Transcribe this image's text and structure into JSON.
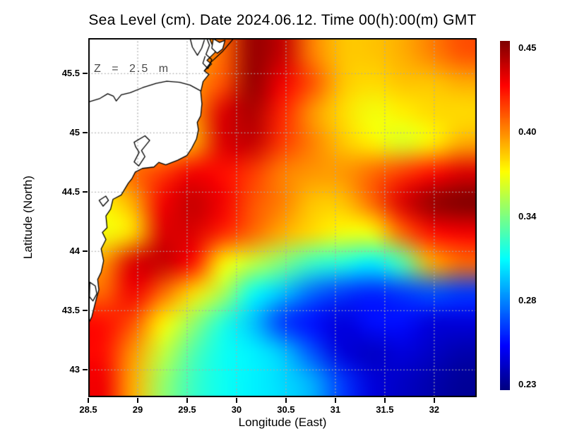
{
  "title": "Sea Level (cm). Date 2024.06.12. Time 00(h):00(m) GMT",
  "annotation": "Z = 2.5 m",
  "colors": {
    "background": "#ffffff",
    "land": "#ffffff",
    "coastline": "#000000",
    "gridline": "#aaaaaa",
    "axis": "#000000",
    "annotation_text": "#4a4a4a",
    "colorbar_top": "#7f0000",
    "colorbar_bottom": "#00007f"
  },
  "chart_data": {
    "type": "heatmap",
    "title": "Sea Level (cm). Date 2024.06.12. Time 00(h):00(m) GMT",
    "xlabel": "Longitude (East)",
    "ylabel": "Latitude (North)",
    "x_range": [
      28.5,
      32.43
    ],
    "y_range": [
      42.77,
      45.8
    ],
    "x_ticks": {
      "values": [
        28.5,
        29,
        29.5,
        30,
        30.5,
        31,
        31.5,
        32
      ],
      "labels": [
        "28.5",
        "29",
        "29.5",
        "30",
        "30.5",
        "31",
        "31.5",
        "32"
      ]
    },
    "y_ticks": {
      "values": [
        43,
        43.5,
        44,
        44.5,
        45,
        45.5
      ],
      "labels": [
        "43",
        "43.5",
        "44",
        "44.5",
        "45",
        "45.5"
      ]
    },
    "grid_on": true,
    "colormap": "jet",
    "colorbar": {
      "min": 0.23,
      "max": 0.45,
      "position": "right",
      "tick_labels": [
        "0.45",
        "0.40",
        "0.34",
        "0.28",
        "0.23"
      ]
    },
    "values_grid": {
      "rows": 12,
      "cols": 13,
      "values": [
        [
          0.39,
          0.39,
          0.39,
          0.385,
          0.4,
          0.445,
          0.435,
          0.395,
          0.38,
          0.38,
          0.385,
          0.395,
          0.405
        ],
        [
          0.38,
          0.38,
          0.38,
          0.39,
          0.405,
          0.445,
          0.425,
          0.405,
          0.38,
          0.375,
          0.38,
          0.38,
          0.385
        ],
        [
          0.38,
          0.38,
          0.38,
          0.39,
          0.43,
          0.44,
          0.415,
          0.39,
          0.375,
          0.365,
          0.37,
          0.375,
          0.375
        ],
        [
          0.38,
          0.38,
          0.38,
          0.385,
          0.43,
          0.435,
          0.41,
          0.395,
          0.38,
          0.37,
          0.36,
          0.37,
          0.385
        ],
        [
          0.39,
          0.4,
          0.41,
          0.425,
          0.42,
          0.41,
          0.395,
          0.39,
          0.39,
          0.4,
          0.41,
          0.42,
          0.43
        ],
        [
          0.37,
          0.385,
          0.425,
          0.435,
          0.425,
          0.405,
          0.395,
          0.38,
          0.38,
          0.4,
          0.43,
          0.445,
          0.45
        ],
        [
          0.365,
          0.375,
          0.43,
          0.43,
          0.415,
          0.4,
          0.385,
          0.375,
          0.365,
          0.365,
          0.4,
          0.42,
          0.425
        ],
        [
          0.39,
          0.43,
          0.435,
          0.42,
          0.37,
          0.355,
          0.34,
          0.325,
          0.32,
          0.31,
          0.33,
          0.385,
          0.4
        ],
        [
          0.4,
          0.425,
          0.4,
          0.375,
          0.35,
          0.315,
          0.3,
          0.28,
          0.27,
          0.265,
          0.27,
          0.275,
          0.27
        ],
        [
          0.42,
          0.405,
          0.37,
          0.345,
          0.32,
          0.3,
          0.27,
          0.26,
          0.25,
          0.26,
          0.26,
          0.25,
          0.25
        ],
        [
          0.42,
          0.39,
          0.355,
          0.33,
          0.315,
          0.31,
          0.3,
          0.275,
          0.25,
          0.245,
          0.25,
          0.245,
          0.24
        ],
        [
          0.425,
          0.385,
          0.345,
          0.325,
          0.315,
          0.31,
          0.305,
          0.295,
          0.27,
          0.25,
          0.245,
          0.24,
          0.235
        ]
      ]
    },
    "coastline": {
      "land_boundary": [
        [
          0.3115,
          0
        ],
        [
          0.327,
          0.039
        ],
        [
          0.3055,
          0.062
        ],
        [
          0.3175,
          0.072
        ],
        [
          0.2985,
          0.0915
        ],
        [
          0.3105,
          0.101
        ],
        [
          0.2955,
          0.121
        ],
        [
          0.2895,
          0.15
        ],
        [
          0.2925,
          0.183
        ],
        [
          0.2895,
          0.216
        ],
        [
          0.2805,
          0.235
        ],
        [
          0.2835,
          0.255
        ],
        [
          0.2785,
          0.281
        ],
        [
          0.266,
          0.307
        ],
        [
          0.254,
          0.327
        ],
        [
          0.23,
          0.34
        ],
        [
          0.1995,
          0.353
        ],
        [
          0.1815,
          0.346
        ],
        [
          0.169,
          0.359
        ],
        [
          0.139,
          0.363
        ],
        [
          0.121,
          0.373
        ],
        [
          0.112,
          0.392
        ],
        [
          0.103,
          0.404
        ],
        [
          0.0848,
          0.437
        ],
        [
          0.0635,
          0.449
        ],
        [
          0.0575,
          0.476
        ],
        [
          0.0454,
          0.4955
        ],
        [
          0.0484,
          0.528
        ],
        [
          0.0363,
          0.541
        ],
        [
          0.0454,
          0.561
        ],
        [
          0.0332,
          0.587
        ],
        [
          0.0394,
          0.62
        ],
        [
          0.0332,
          0.652
        ],
        [
          0.0242,
          0.672
        ],
        [
          0.0272,
          0.701
        ],
        [
          0.0212,
          0.724
        ],
        [
          0.0151,
          0.75
        ],
        [
          0.0091,
          0.776
        ],
        [
          0.0,
          0.796
        ]
      ],
      "inland_contours": [
        {
          "closed": false,
          "fill": false,
          "points": [
            [
              0,
              0.178
            ],
            [
              0.03,
              0.168
            ],
            [
              0.05,
              0.155
            ],
            [
              0.065,
              0.162
            ],
            [
              0.072,
              0.175
            ],
            [
              0.085,
              0.158
            ],
            [
              0.108,
              0.152
            ],
            [
              0.14,
              0.138
            ],
            [
              0.175,
              0.126
            ],
            [
              0.202,
              0.12
            ],
            [
              0.235,
              0.123
            ],
            [
              0.262,
              0.131
            ],
            [
              0.2895,
              0.147
            ]
          ]
        },
        {
          "closed": false,
          "fill": false,
          "points": [
            [
              0.262,
              0.0
            ],
            [
              0.268,
              0.025
            ],
            [
              0.281,
              0.048
            ],
            [
              0.292,
              0.028
            ],
            [
              0.299,
              0.005
            ]
          ]
        },
        {
          "closed": false,
          "fill": false,
          "points": [
            [
              0.305,
              0.0
            ],
            [
              0.312,
              0.02
            ],
            [
              0.303,
              0.045
            ],
            [
              0.318,
              0.06
            ],
            [
              0.308,
              0.085
            ],
            [
              0.295,
              0.07
            ],
            [
              0.301,
              0.05
            ]
          ]
        },
        {
          "closed": false,
          "fill": false,
          "points": [
            [
              0.375,
              0.0
            ],
            [
              0.345,
              0.038
            ],
            [
              0.315,
              0.068
            ],
            [
              0.2985,
              0.0915
            ]
          ]
        },
        {
          "closed": true,
          "fill": true,
          "points": [
            [
              0.322,
              0.002
            ],
            [
              0.338,
              0.012
            ],
            [
              0.352,
              0.006
            ],
            [
              0.346,
              0.03
            ],
            [
              0.332,
              0.042
            ],
            [
              0.318,
              0.028
            ]
          ]
        },
        {
          "closed": true,
          "fill": false,
          "points": [
            [
              0.118,
              0.29
            ],
            [
              0.146,
              0.272
            ],
            [
              0.158,
              0.285
            ],
            [
              0.137,
              0.313
            ],
            [
              0.146,
              0.33
            ],
            [
              0.13,
              0.356
            ],
            [
              0.118,
              0.345
            ],
            [
              0.131,
              0.318
            ],
            [
              0.122,
              0.303
            ]
          ]
        },
        {
          "closed": true,
          "fill": false,
          "points": [
            [
              0.004,
              0.68
            ],
            [
              0.018,
              0.69
            ],
            [
              0.022,
              0.712
            ],
            [
              0.012,
              0.732
            ],
            [
              0.003,
              0.72
            ]
          ]
        },
        {
          "closed": true,
          "fill": false,
          "points": [
            [
              0.028,
              0.452
            ],
            [
              0.045,
              0.44
            ],
            [
              0.052,
              0.452
            ],
            [
              0.038,
              0.468
            ]
          ]
        }
      ]
    }
  }
}
